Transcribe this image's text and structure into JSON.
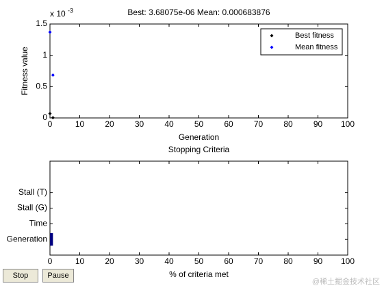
{
  "chart_data": [
    {
      "type": "scatter",
      "title": "Best: 3.68075e-06 Mean: 0.000683876",
      "xlabel": "Generation",
      "ylabel": "Fitness value",
      "y_scale_label": "x 10",
      "y_scale_exponent": "-3",
      "x": [
        0,
        1
      ],
      "series": [
        {
          "name": "Best fitness",
          "color": "#000000",
          "values": [
            0.07,
            0.0037
          ]
        },
        {
          "name": "Mean fitness",
          "color": "#0000ff",
          "values": [
            1.37,
            0.684
          ]
        }
      ],
      "xlim": [
        0,
        100
      ],
      "ylim": [
        0,
        1.5
      ],
      "xticks": [
        0,
        10,
        20,
        30,
        40,
        50,
        60,
        70,
        80,
        90,
        100
      ],
      "yticks": [
        0,
        0.5,
        1,
        1.5
      ],
      "legend": "upper right"
    },
    {
      "type": "barh",
      "title": "Stopping Criteria",
      "xlabel": "% of criteria met",
      "categories": [
        "Generation",
        "Time",
        "Stall (G)",
        "Stall (T)"
      ],
      "values": [
        1,
        0,
        0,
        0
      ],
      "color": "#000080",
      "xlim": [
        0,
        100
      ],
      "xticks": [
        0,
        10,
        20,
        30,
        40,
        50,
        60,
        70,
        80,
        90,
        100
      ]
    }
  ],
  "controls": {
    "stop": "Stop",
    "pause": "Pause"
  },
  "watermark": "@稀土掘金技术社区"
}
